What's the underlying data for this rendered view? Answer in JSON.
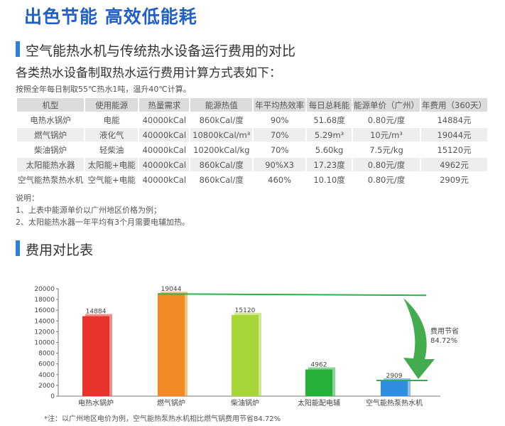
{
  "headline": "出色节能  高效低能耗",
  "section1_title": "空气能热水机与传统热水设备运行费用的对比",
  "subtitle": "各类热水设备制取热水运行费用计算方式表如下：",
  "condition": "按照全年每日制取55℃热水1吨，温升40℃计算。",
  "table": {
    "headers": [
      "机型",
      "使用能源",
      "热量需求",
      "能源热值",
      "年平均热效率",
      "每日总耗能",
      "能源单价（广州）",
      "年费用（360天）"
    ],
    "rows": [
      [
        "电热水锅炉",
        "电能",
        "40000kCal",
        "860kCal/度",
        "90%",
        "51.68度",
        "0.80元/度",
        "14884元"
      ],
      [
        "燃气锅炉",
        "液化气",
        "40000kCal",
        "10800kCal/m³",
        "70%",
        "5.29m³",
        "10元/m³",
        "19044元"
      ],
      [
        "柴油锅炉",
        "轻柴油",
        "40000kCal",
        "10200kCal/kg",
        "70%",
        "5.60kg",
        "7.5元/kg",
        "15120元"
      ],
      [
        "太阳能热水器",
        "太阳能+电能",
        "40000kCal",
        "860kCal/度",
        "90%X3",
        "17.23度",
        "0.80元/度",
        "4962元"
      ],
      [
        "空气能热泵热水机",
        "空气能+电能",
        "40000kCal",
        "860kCal/度",
        "460%",
        "10.10度",
        "0.80元/度",
        "2909元"
      ]
    ]
  },
  "notes": [
    "说明：",
    "1、上表中能源单价以广州地区价格为例；",
    "2、太阳能热水器一年平均有3个月需要电辅加热。"
  ],
  "section2_title": "费用对比表",
  "chart_data": {
    "type": "bar",
    "categories": [
      "电热水锅炉",
      "燃气锅炉",
      "柴油锅炉",
      "太阳能配电辅",
      "空气能热泵热水机"
    ],
    "values": [
      14884,
      19044,
      15120,
      4962,
      2909
    ],
    "colors": [
      "#e8322c",
      "#f28a23",
      "#a8d63a",
      "#27b13b",
      "#2f8ee0"
    ],
    "ylim": [
      0,
      20000
    ],
    "yticks": [
      0,
      2000,
      4000,
      6000,
      8000,
      10000,
      12000,
      14000,
      16000,
      18000,
      20000
    ],
    "annotation": [
      "费用节省",
      "84.72%"
    ],
    "grid": false
  },
  "footnote": "*注：以广州地区电价为例，空气能热泵热水机相比燃气锅费用节省84.72%"
}
